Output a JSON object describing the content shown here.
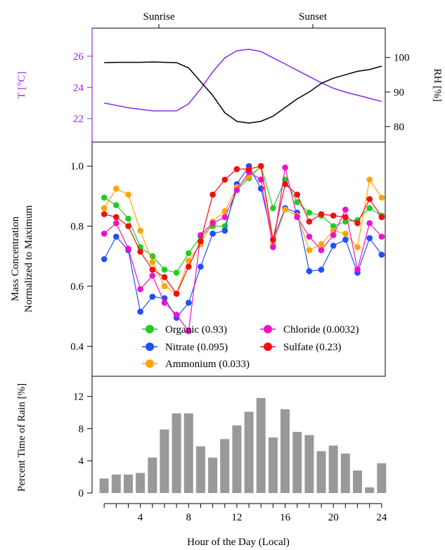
{
  "chart_data": [
    {
      "type": "line",
      "annotations": [
        "Sunrise",
        "Sunset"
      ],
      "ylabel_left": "T [°C]",
      "ylabel_right": "RH [%]",
      "x": [
        1,
        2,
        3,
        4,
        5,
        6,
        7,
        8,
        9,
        10,
        11,
        12,
        13,
        14,
        15,
        16,
        17,
        18,
        19,
        20,
        21,
        22,
        23,
        24
      ],
      "xlim": [
        0,
        24.3
      ],
      "ylim_left": [
        20.5,
        27.8
      ],
      "ylim_right": [
        75.5,
        108.5
      ],
      "yticks_left": [
        22,
        24,
        26
      ],
      "yticks_right": [
        80,
        90,
        100
      ],
      "colors": {
        "temperature": "#8a2be2",
        "humidity": "#000000"
      },
      "series": [
        {
          "axis": "left",
          "values": [
            23.0,
            22.85,
            22.7,
            22.6,
            22.5,
            22.5,
            22.5,
            22.95,
            23.9,
            25.0,
            25.9,
            26.35,
            26.45,
            26.3,
            25.9,
            25.5,
            25.1,
            24.7,
            24.3,
            23.95,
            23.7,
            23.5,
            23.3,
            23.1
          ]
        },
        {
          "axis": "right",
          "values": [
            98.5,
            98.6,
            98.6,
            98.6,
            98.7,
            98.6,
            98.5,
            97.0,
            93.0,
            89.0,
            84.0,
            81.5,
            81.0,
            81.5,
            83.0,
            85.5,
            88.0,
            90.0,
            92.5,
            94.0,
            95.0,
            96.0,
            96.5,
            97.5
          ]
        }
      ]
    },
    {
      "type": "line",
      "ylabel": [
        "Mass Concentration",
        "Normalized to Maximum"
      ],
      "x": [
        1,
        2,
        3,
        4,
        5,
        6,
        7,
        8,
        9,
        10,
        11,
        12,
        13,
        14,
        15,
        16,
        17,
        18,
        19,
        20,
        21,
        22,
        23,
        24
      ],
      "xlim": [
        0,
        24.3
      ],
      "ylim": [
        0.3,
        1.08
      ],
      "yticks": [
        0.4,
        0.6,
        0.8,
        1.0
      ],
      "series": [
        {
          "name": "Organic (0.93)",
          "color": "#22cc22",
          "values": [
            0.895,
            0.87,
            0.825,
            0.73,
            0.7,
            0.655,
            0.645,
            0.71,
            0.765,
            0.8,
            0.8,
            0.92,
            0.96,
            1.0,
            0.86,
            0.955,
            0.88,
            0.845,
            0.835,
            0.8,
            0.815,
            0.82,
            0.86,
            0.835
          ]
        },
        {
          "name": "Nitrate (0.095)",
          "color": "#1f4fff",
          "values": [
            0.69,
            0.765,
            0.72,
            0.515,
            0.565,
            0.56,
            0.495,
            0.545,
            0.665,
            0.775,
            0.785,
            0.94,
            1.0,
            0.925,
            0.755,
            0.86,
            0.845,
            0.65,
            0.655,
            0.735,
            0.755,
            0.645,
            0.76,
            0.705
          ]
        },
        {
          "name": "Ammonium (0.033)",
          "color": "#ffa500",
          "values": [
            0.86,
            0.925,
            0.905,
            0.785,
            0.68,
            0.6,
            0.575,
            0.685,
            0.74,
            0.815,
            0.85,
            0.93,
            0.965,
            1.0,
            0.74,
            0.855,
            0.835,
            0.72,
            0.74,
            0.785,
            0.775,
            0.73,
            0.955,
            0.895
          ]
        },
        {
          "name": "Chloride (0.0032)",
          "color": "#ee11cc",
          "values": [
            0.775,
            0.81,
            0.725,
            0.59,
            0.635,
            0.545,
            0.505,
            0.45,
            0.77,
            0.81,
            0.83,
            0.92,
            0.98,
            0.955,
            0.73,
            0.995,
            0.83,
            0.765,
            0.72,
            0.77,
            0.855,
            0.655,
            0.81,
            0.765
          ]
        },
        {
          "name": "Sulfate (0.23)",
          "color": "#ee1111",
          "values": [
            0.84,
            0.83,
            0.8,
            0.715,
            0.655,
            0.63,
            0.575,
            0.665,
            0.75,
            0.905,
            0.955,
            0.99,
            0.99,
            1.0,
            0.755,
            0.94,
            0.905,
            0.815,
            0.84,
            0.835,
            0.83,
            0.81,
            0.89,
            0.83
          ]
        }
      ]
    },
    {
      "type": "bar",
      "ylabel": "Percent Time of Rain [%]",
      "xlabel": "Hour of the Day (Local)",
      "x": [
        1,
        2,
        3,
        4,
        5,
        6,
        7,
        8,
        9,
        10,
        11,
        12,
        13,
        14,
        15,
        16,
        17,
        18,
        19,
        20,
        21,
        22,
        23,
        24
      ],
      "values": [
        1.8,
        2.3,
        2.3,
        2.5,
        4.4,
        7.9,
        9.9,
        9.9,
        5.8,
        4.4,
        6.7,
        8.4,
        10.1,
        11.8,
        6.9,
        10.4,
        7.6,
        7.2,
        5.2,
        5.9,
        4.9,
        2.8,
        0.7,
        3.7
      ],
      "xlim": [
        0,
        24.3
      ],
      "ylim": [
        0,
        14.5
      ],
      "yticks": [
        0,
        4,
        8,
        12
      ],
      "xticks": [
        4,
        8,
        12,
        16,
        20,
        24
      ],
      "bar_color": "#999999"
    }
  ]
}
